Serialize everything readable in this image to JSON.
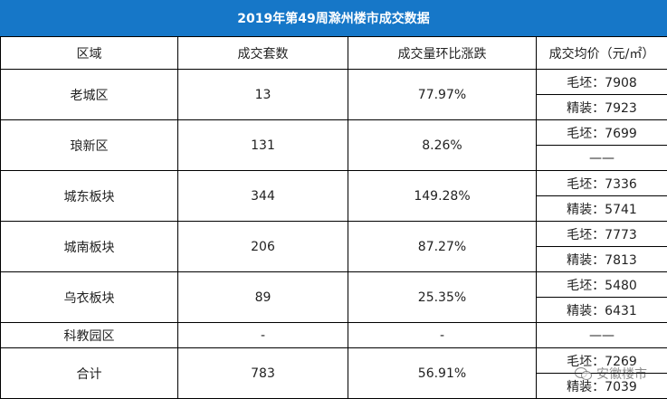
{
  "title": "2019年第49周滁州楼市成交数据",
  "headers": [
    "区域",
    "成交套数",
    "成交量环比涨跌",
    "成交均价（元/㎡）"
  ],
  "rows": [
    {
      "region": "老城区",
      "units": "13",
      "change": "77.97%",
      "prices": [
        "毛坯：7908",
        "精装：7923"
      ]
    },
    {
      "region": "琅新区",
      "units": "131",
      "change": "8.26%",
      "prices": [
        "毛坯：7699",
        "——"
      ]
    },
    {
      "region": "城东板块",
      "units": "344",
      "change": "149.28%",
      "prices": [
        "毛坯：7336",
        "精装：5741"
      ]
    },
    {
      "region": "城南板块",
      "units": "206",
      "change": "87.27%",
      "prices": [
        "毛坯：7773",
        "精装：7813"
      ]
    },
    {
      "region": "乌衣板块",
      "units": "89",
      "change": "25.35%",
      "prices": [
        "毛坯：5480",
        "精装：6431"
      ]
    },
    {
      "region": "科教园区",
      "units": "-",
      "change": "-",
      "prices": [
        "——"
      ]
    },
    {
      "region": "合计",
      "units": "783",
      "change": "56.91%",
      "prices": [
        "毛坯：7269",
        "精装：7039"
      ]
    }
  ],
  "watermark": {
    "text": "安徽楼市",
    "icon": "wechat-icon"
  }
}
